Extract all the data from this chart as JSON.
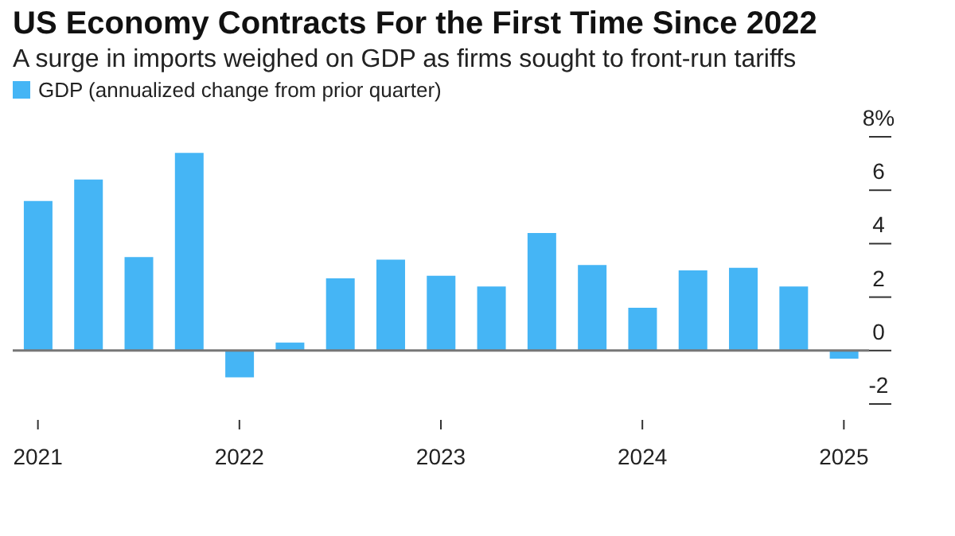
{
  "chart_data": {
    "type": "bar",
    "title": "US Economy Contracts For the First Time Since 2022",
    "subtitle": "A surge in imports weighed on GDP as firms sought to front-run tariffs",
    "categories": [
      "2021",
      null,
      null,
      null,
      "2022",
      null,
      null,
      null,
      "2023",
      null,
      null,
      null,
      "2024",
      null,
      null,
      null,
      "2025"
    ],
    "series": [
      {
        "name": "GDP (annualized change from prior quarter)",
        "color": "#45b5f5",
        "values": [
          5.6,
          6.4,
          3.5,
          7.4,
          -1.0,
          0.3,
          2.7,
          3.4,
          2.8,
          2.4,
          4.4,
          3.2,
          1.6,
          3.0,
          3.1,
          2.4,
          -0.3
        ]
      }
    ],
    "ylim": [
      -2,
      8
    ],
    "yticks": [
      -2,
      0,
      2,
      4,
      6,
      {
        "value": 8,
        "label": "8%"
      }
    ],
    "ref_lines": [
      {
        "axis": "y",
        "value": 0,
        "color": "#777777"
      }
    ],
    "legend": "top left"
  }
}
